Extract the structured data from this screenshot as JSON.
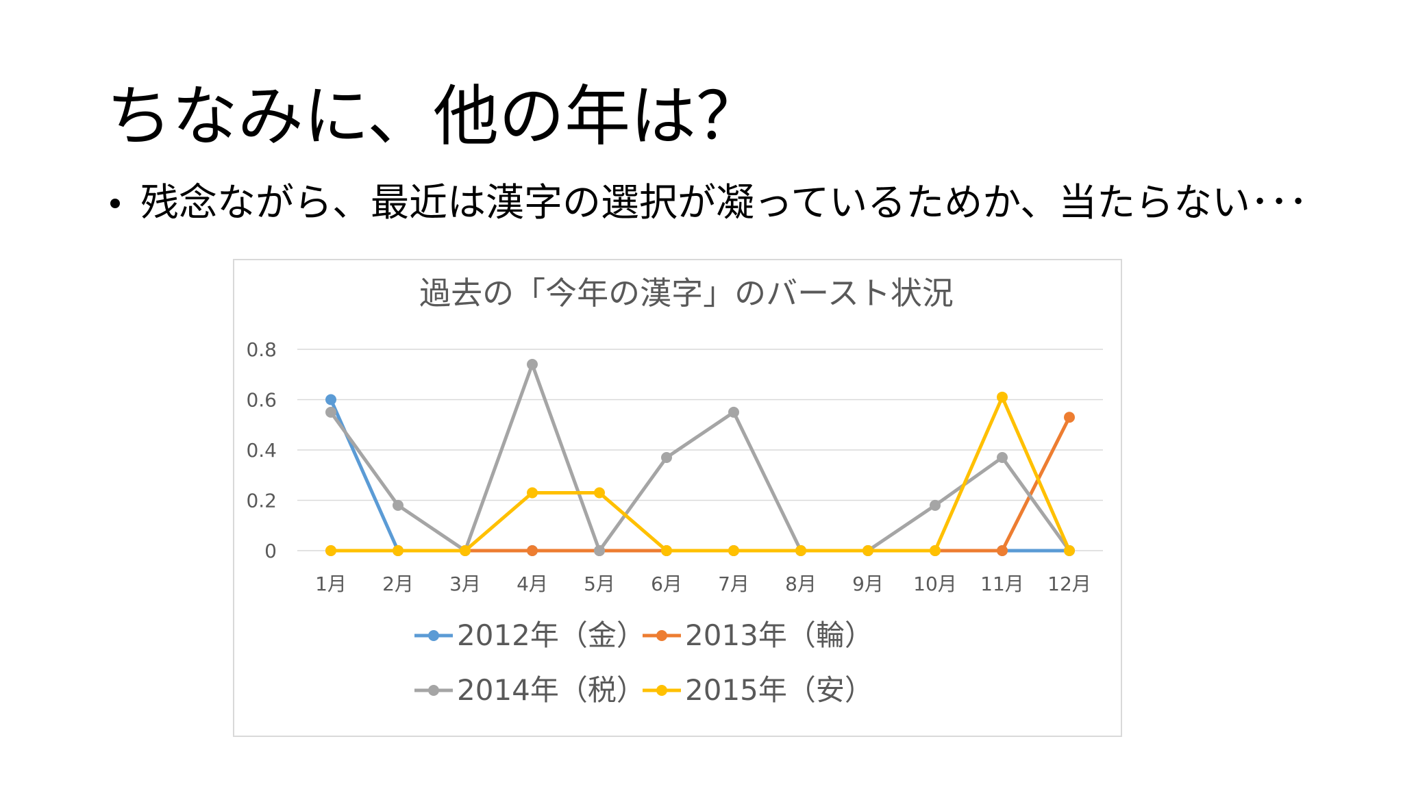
{
  "slide": {
    "title": "ちなみに、他の年は？",
    "bullet": "残念ながら、最近は漢字の選択が凝っているためか、当たらない･･･"
  },
  "chart_data": {
    "type": "line",
    "title": "過去の「今年の漢字」のバースト状況",
    "categories": [
      "1月",
      "2月",
      "3月",
      "4月",
      "5月",
      "6月",
      "7月",
      "8月",
      "9月",
      "10月",
      "11月",
      "12月"
    ],
    "ylim": [
      0,
      0.8
    ],
    "yticks": [
      0,
      0.2,
      0.4,
      0.6,
      0.8
    ],
    "ytick_labels": [
      "0",
      "0.2",
      "0.4",
      "0.6",
      "0.8"
    ],
    "grid": true,
    "legend_position": "bottom",
    "series": [
      {
        "name": "2012年（金）",
        "color": "#5b9bd5",
        "values": [
          0.6,
          0,
          0,
          0,
          0,
          0,
          0,
          0,
          0,
          0,
          0,
          0
        ]
      },
      {
        "name": "2013年（輪）",
        "color": "#ed7d31",
        "values": [
          0,
          0,
          0,
          0,
          0,
          0,
          0,
          0,
          0,
          0,
          0,
          0.53
        ]
      },
      {
        "name": "2014年（税）",
        "color": "#a5a5a5",
        "values": [
          0.55,
          0.18,
          0,
          0.74,
          0,
          0.37,
          0.55,
          0,
          0,
          0.18,
          0.37,
          0
        ]
      },
      {
        "name": "2015年（安）",
        "color": "#ffc000",
        "values": [
          0,
          0,
          0,
          0.23,
          0.23,
          0,
          0,
          0,
          0,
          0,
          0.61,
          0
        ]
      }
    ]
  }
}
